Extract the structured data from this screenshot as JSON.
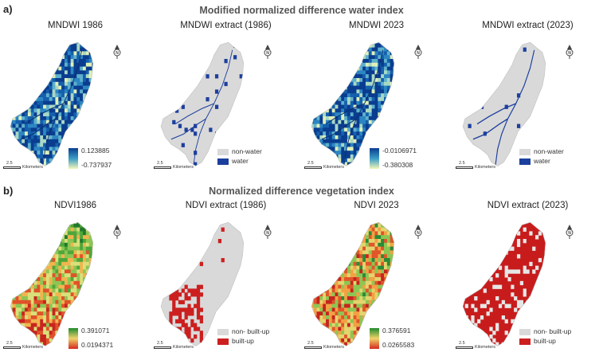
{
  "section_a": {
    "label": "a)",
    "title": "Modified normalized difference water index"
  },
  "section_b": {
    "label": "b)",
    "title": "Normalized difference vegetation index"
  },
  "panels": [
    {
      "title": "MNDWI 1986",
      "kind": "gradient",
      "palette": "blue",
      "max": "0.123885",
      "min": "-0.737937"
    },
    {
      "title": "MNDWI extract (1986)",
      "kind": "classes",
      "palette": "water1986",
      "class1": "non-water",
      "class2": "water",
      "color1": "#d9d9d9",
      "color2": "#1c3f9e"
    },
    {
      "title": "MNDWI 2023",
      "kind": "gradient",
      "palette": "blue",
      "max": "-0.0106971",
      "min": "-0.380308"
    },
    {
      "title": "MNDWI extract (2023)",
      "kind": "classes",
      "palette": "water2023",
      "class1": "non-water",
      "class2": "water",
      "color1": "#d9d9d9",
      "color2": "#1c3f9e"
    },
    {
      "title": "NDVI1986",
      "kind": "gradient",
      "palette": "ndvi1986",
      "max": "0.391071",
      "min": "0.0194371"
    },
    {
      "title": "NDVI extract (1986)",
      "kind": "classes",
      "palette": "built1986",
      "class1": "non- built-up",
      "class2": "built-up",
      "color1": "#d9d9d9",
      "color2": "#cc1f1f"
    },
    {
      "title": "NDVI 2023",
      "kind": "gradient",
      "palette": "ndvi2023",
      "max": "0.376591",
      "min": "0.0265583"
    },
    {
      "title": "NDVI extract (2023)",
      "kind": "classes",
      "palette": "built2023",
      "class1": "non- built-up",
      "class2": "built-up",
      "color1": "#d9d9d9",
      "color2": "#cc1f1f"
    }
  ],
  "scale": {
    "value": "2.5",
    "unit": "Kilometers"
  },
  "north_icon": "north-arrow-icon"
}
